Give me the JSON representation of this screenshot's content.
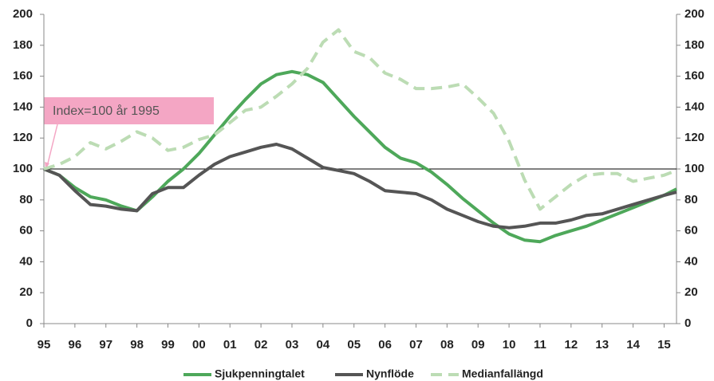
{
  "chart_data": {
    "type": "line",
    "annotation": "Index=100 år 1995",
    "reference_line": 100,
    "x": [
      1995,
      1995.5,
      1996,
      1996.5,
      1997,
      1997.5,
      1998,
      1998.5,
      1999,
      1999.5,
      2000,
      2000.5,
      2001,
      2001.5,
      2002,
      2002.5,
      2003,
      2003.5,
      2004,
      2004.5,
      2005,
      2005.5,
      2006,
      2006.5,
      2007,
      2007.5,
      2008,
      2008.5,
      2009,
      2009.5,
      2010,
      2010.5,
      2011,
      2011.5,
      2012,
      2012.5,
      2013,
      2013.5,
      2014,
      2014.5,
      2015,
      2015.4
    ],
    "series": [
      {
        "name": "Sjukpenningtalet",
        "color": "#4ea85a",
        "dash": false,
        "values": [
          100,
          96,
          88,
          82,
          80,
          76,
          73,
          82,
          92,
          100,
          110,
          122,
          134,
          145,
          155,
          161,
          163,
          161,
          156,
          145,
          134,
          124,
          114,
          107,
          104,
          98,
          90,
          81,
          73,
          65,
          58,
          54,
          53,
          57,
          60,
          63,
          67,
          71,
          75,
          79,
          83,
          87
        ]
      },
      {
        "name": "Nynflöde",
        "color": "#555555",
        "dash": false,
        "values": [
          100,
          96,
          86,
          77,
          76,
          74,
          73,
          84,
          88,
          88,
          96,
          103,
          108,
          111,
          114,
          116,
          113,
          107,
          101,
          99,
          97,
          92,
          86,
          85,
          84,
          80,
          74,
          70,
          66,
          63,
          62,
          63,
          65,
          65,
          67,
          70,
          71,
          74,
          77,
          80,
          83,
          85
        ]
      },
      {
        "name": "Medianfallängd",
        "color": "#bcdcb4",
        "dash": true,
        "values": [
          100,
          103,
          108,
          117,
          113,
          118,
          124,
          120,
          112,
          114,
          119,
          122,
          130,
          138,
          140,
          147,
          155,
          165,
          182,
          190,
          176,
          172,
          162,
          158,
          152,
          152,
          153,
          155,
          146,
          136,
          118,
          93,
          74,
          82,
          90,
          96,
          97,
          97,
          92,
          94,
          96,
          99
        ]
      }
    ],
    "xlim": [
      1995,
      2015.4
    ],
    "xticks": [
      {
        "value": 1995,
        "label": "95"
      },
      {
        "value": 1996,
        "label": "96"
      },
      {
        "value": 1997,
        "label": "97"
      },
      {
        "value": 1998,
        "label": "98"
      },
      {
        "value": 1999,
        "label": "99"
      },
      {
        "value": 2000,
        "label": "00"
      },
      {
        "value": 2001,
        "label": "01"
      },
      {
        "value": 2002,
        "label": "02"
      },
      {
        "value": 2003,
        "label": "03"
      },
      {
        "value": 2004,
        "label": "04"
      },
      {
        "value": 2005,
        "label": "05"
      },
      {
        "value": 2006,
        "label": "06"
      },
      {
        "value": 2007,
        "label": "07"
      },
      {
        "value": 2008,
        "label": "08"
      },
      {
        "value": 2009,
        "label": "09"
      },
      {
        "value": 2010,
        "label": "10"
      },
      {
        "value": 2011,
        "label": "11"
      },
      {
        "value": 2012,
        "label": "12"
      },
      {
        "value": 2013,
        "label": "13"
      },
      {
        "value": 2014,
        "label": "14"
      },
      {
        "value": 2015,
        "label": "15"
      }
    ],
    "ylim": [
      0,
      200
    ],
    "yticks": [
      0,
      20,
      40,
      60,
      80,
      100,
      120,
      140,
      160,
      180,
      200
    ],
    "y2lim": [
      0,
      200
    ],
    "y2ticks": [
      0,
      20,
      40,
      60,
      80,
      100,
      120,
      140,
      160,
      180,
      200
    ],
    "grid": false
  }
}
